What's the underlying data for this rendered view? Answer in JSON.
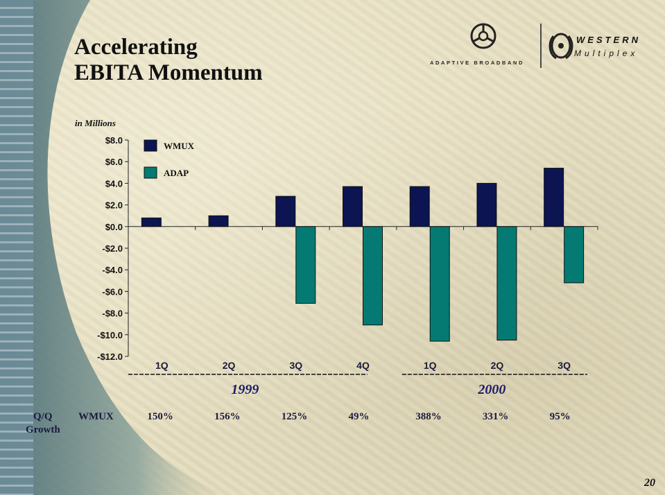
{
  "slide": {
    "title_line1": "Accelerating",
    "title_line2": "EBITA Momentum",
    "units": "in Millions",
    "page_number": "20"
  },
  "logos": {
    "adaptive": "ADAPTIVE BROADBAND",
    "western_line1": "WESTERN",
    "western_line2": "Multiplex"
  },
  "colors": {
    "wmux": "#0d1452",
    "adap": "#047a73",
    "axis": "#222222",
    "year": "#1c1c6b"
  },
  "chart_data": {
    "type": "bar",
    "categories": [
      "1Q",
      "2Q",
      "3Q",
      "4Q",
      "1Q",
      "2Q",
      "3Q"
    ],
    "category_groups": [
      {
        "label": "1999",
        "categories": [
          "1Q",
          "2Q",
          "3Q",
          "4Q"
        ]
      },
      {
        "label": "2000",
        "categories": [
          "1Q",
          "2Q",
          "3Q"
        ]
      }
    ],
    "series": [
      {
        "name": "WMUX",
        "values": [
          0.8,
          1.0,
          2.8,
          3.7,
          3.7,
          4.0,
          5.4
        ],
        "color": "#0d1452"
      },
      {
        "name": "ADAP",
        "values": [
          0,
          0,
          -7.1,
          -9.1,
          -10.6,
          -10.5,
          -5.2
        ],
        "color": "#047a73"
      }
    ],
    "ylim": [
      -12,
      8
    ],
    "yticks": [
      8,
      6,
      4,
      2,
      0,
      -2,
      -4,
      -6,
      -8,
      -10,
      -12
    ],
    "ytick_labels": [
      "$8.0",
      "$6.0",
      "$4.0",
      "$2.0",
      "$0.0",
      "-$2.0",
      "-$4.0",
      "-$6.0",
      "-$8.0",
      "-$10.0",
      "-$12.0"
    ],
    "ylabel": "in Millions",
    "legend": "top-left",
    "grid": false
  },
  "growth": {
    "label_line1": "Q/Q",
    "label_line2": "Growth",
    "series": "WMUX",
    "values": [
      "150%",
      "156%",
      "125%",
      "49%",
      "388%",
      "331%",
      "95%"
    ]
  }
}
